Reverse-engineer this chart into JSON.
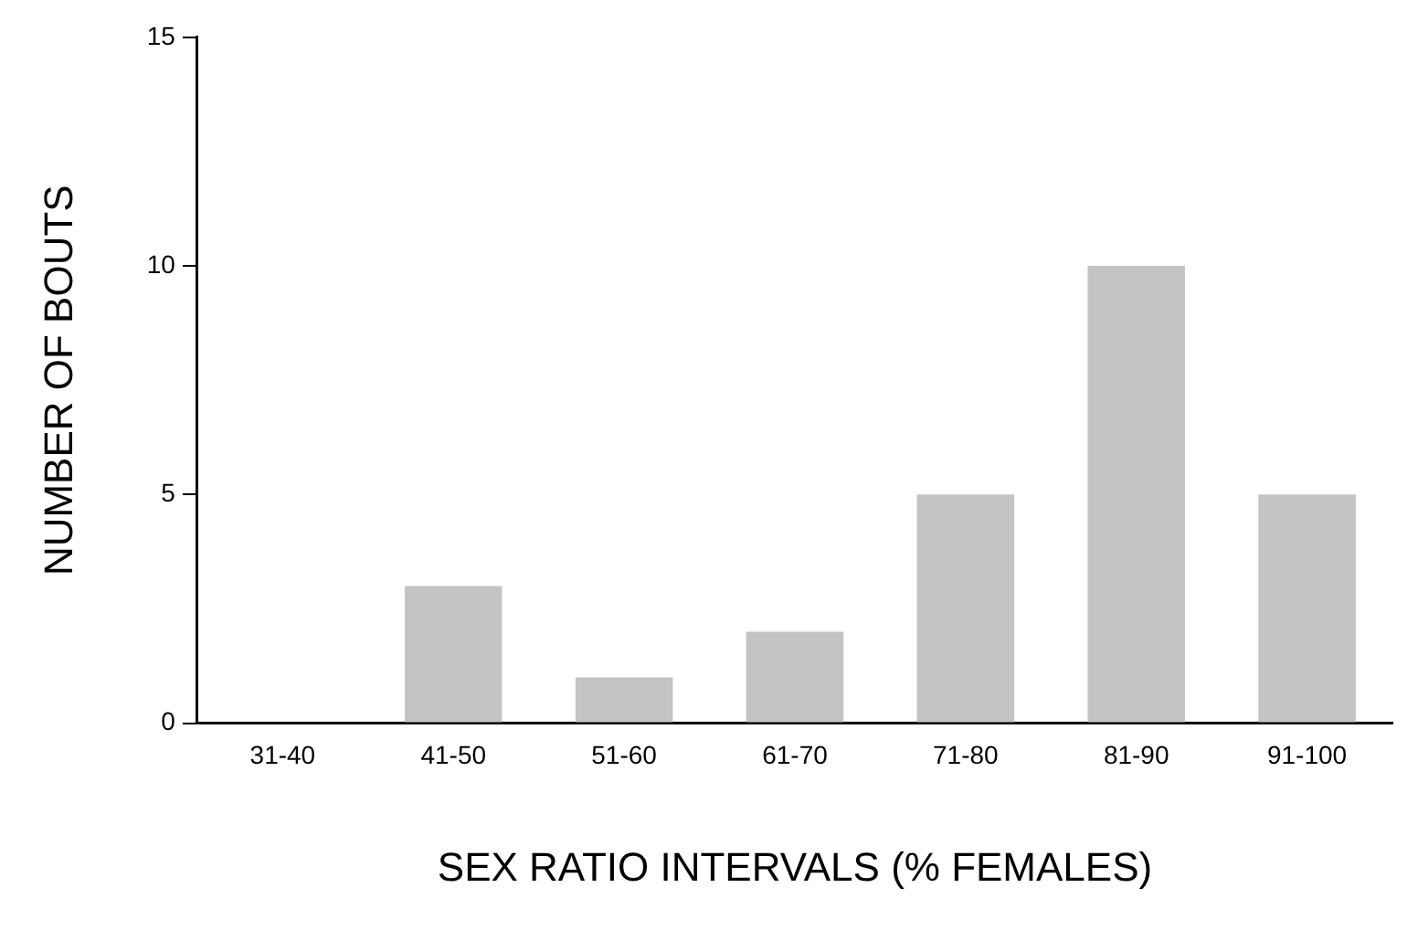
{
  "chart_data": {
    "type": "bar",
    "xlabel": "SEX RATIO INTERVALS (% FEMALES)",
    "ylabel": "NUMBER OF BOUTS",
    "categories": [
      "31-40",
      "41-50",
      "51-60",
      "61-70",
      "71-80",
      "81-90",
      "91-100"
    ],
    "values": [
      0,
      3,
      1,
      2,
      5,
      10,
      5
    ],
    "color": "#c4c4c4",
    "ylim": [
      0,
      15
    ],
    "yticks": [
      0,
      5,
      10,
      15
    ],
    "grid": false,
    "legend": false
  }
}
